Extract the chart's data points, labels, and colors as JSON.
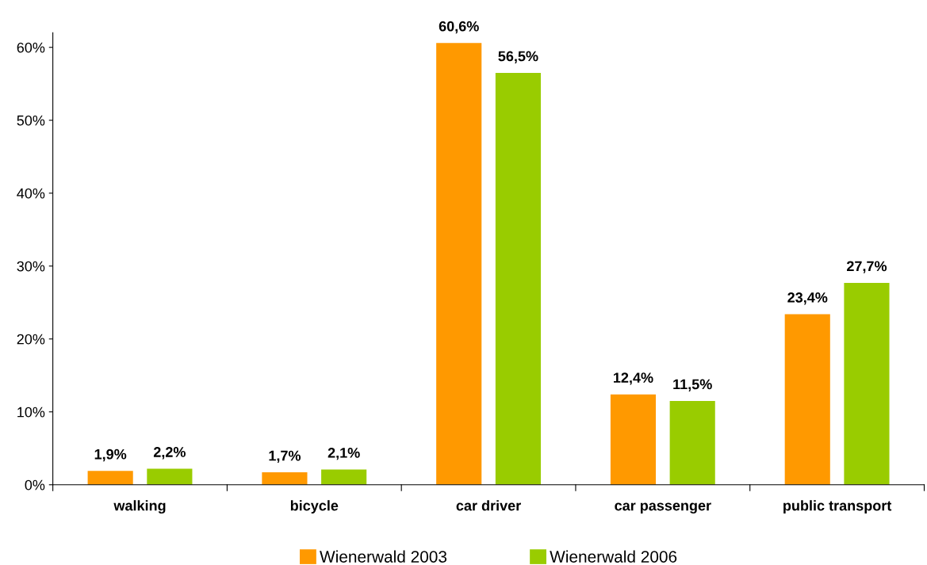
{
  "chart_data": {
    "type": "bar",
    "categories": [
      "walking",
      "bicycle",
      "car driver",
      "car passenger",
      "public transport"
    ],
    "series": [
      {
        "name": "Wienerwald 2003",
        "color": "#ff9900",
        "values": [
          1.9,
          1.7,
          60.6,
          12.4,
          23.4
        ],
        "value_labels": [
          "1,9%",
          "1,7%",
          "60,6%",
          "12,4%",
          "23,4%"
        ]
      },
      {
        "name": "Wienerwald 2006",
        "color": "#99cc00",
        "values": [
          2.2,
          2.1,
          56.5,
          11.5,
          27.7
        ],
        "value_labels": [
          "2,2%",
          "2,1%",
          "56,5%",
          "11,5%",
          "27,7%"
        ]
      }
    ],
    "ylim": [
      0,
      62
    ],
    "yticks": [
      {
        "value": 0,
        "label": "0%"
      },
      {
        "value": 10,
        "label": "10%"
      },
      {
        "value": 20,
        "label": "20%"
      },
      {
        "value": 30,
        "label": "30%"
      },
      {
        "value": 40,
        "label": "40%"
      },
      {
        "value": 50,
        "label": "50%"
      },
      {
        "value": 60,
        "label": "60%"
      }
    ],
    "grid": false,
    "legend": "bottom"
  }
}
